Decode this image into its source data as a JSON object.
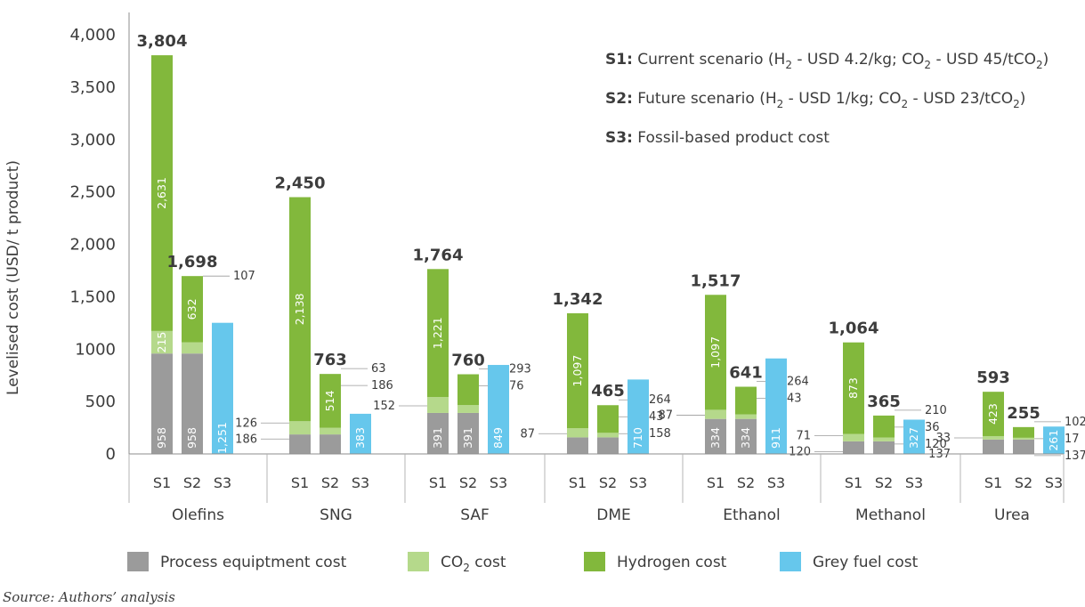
{
  "chart_data": {
    "type": "bar",
    "stacked": true,
    "ylabel": "Levelised cost (USD/ t product)",
    "ylim": [
      0,
      4000
    ],
    "yticks": [
      "0",
      "500",
      "1000",
      "1,500",
      "2,000",
      "2,500",
      "3,000",
      "3,500",
      "4,000"
    ],
    "grid": false,
    "categories": [
      "Olefins",
      "SNG",
      "SAF",
      "DME",
      "Ethanol",
      "Methanol",
      "Urea"
    ],
    "scenarios": [
      "S1",
      "S2",
      "S3"
    ],
    "series": [
      {
        "key": "process",
        "name": "Process equiptment cost",
        "color": "#9b9b9b"
      },
      {
        "key": "co2",
        "name": "CO₂ cost",
        "color": "#b5d98b"
      },
      {
        "key": "hydrogen",
        "name": "Hydrogen cost",
        "color": "#82b83c"
      },
      {
        "key": "grey",
        "name": "Grey fuel cost",
        "color": "#66c7ec"
      }
    ],
    "bars": [
      {
        "category": "Olefins",
        "scenario": "S1",
        "process": 958,
        "co2": 215,
        "hydrogen": 2631,
        "total": "3,804",
        "labels": {
          "process": "958",
          "co2": "215",
          "hydrogen": "2,631"
        }
      },
      {
        "category": "Olefins",
        "scenario": "S2",
        "process": 958,
        "co2": 107,
        "hydrogen": 632,
        "total": "1,698",
        "labels": {
          "process": "958",
          "hydrogen": "632"
        },
        "side_right": [
          "107"
        ]
      },
      {
        "category": "Olefins",
        "scenario": "S3",
        "grey": 1251,
        "labels": {
          "grey": "1,251"
        }
      },
      {
        "category": "SNG",
        "scenario": "S1",
        "process": 186,
        "co2": 126,
        "hydrogen": 2138,
        "total": "2,450",
        "labels": {
          "hydrogen": "2,138"
        },
        "side_left": [
          "126",
          "186"
        ]
      },
      {
        "category": "SNG",
        "scenario": "S2",
        "process": 186,
        "co2": 63,
        "hydrogen": 514,
        "total": "763",
        "labels": {
          "hydrogen": "514"
        },
        "side_right": [
          "63",
          "186"
        ]
      },
      {
        "category": "SNG",
        "scenario": "S3",
        "grey": 383,
        "labels": {
          "grey": "383"
        }
      },
      {
        "category": "SAF",
        "scenario": "S1",
        "process": 391,
        "co2": 152,
        "hydrogen": 1221,
        "total": "1,764",
        "labels": {
          "process": "391",
          "hydrogen": "1,221"
        },
        "side_left": [
          "152"
        ]
      },
      {
        "category": "SAF",
        "scenario": "S2",
        "process": 391,
        "co2": 76,
        "hydrogen": 293,
        "total": "760",
        "labels": {
          "process": "391"
        },
        "side_right": [
          "293",
          "76"
        ]
      },
      {
        "category": "SAF",
        "scenario": "S3",
        "grey": 849,
        "labels": {
          "grey": "849"
        }
      },
      {
        "category": "DME",
        "scenario": "S1",
        "process": 158,
        "co2": 87,
        "hydrogen": 1097,
        "total": "1,342",
        "labels": {
          "hydrogen": "1,097"
        },
        "side_left": [
          "87"
        ]
      },
      {
        "category": "DME",
        "scenario": "S2",
        "process": 158,
        "co2": 43,
        "hydrogen": 264,
        "total": "465",
        "side_right": [
          "264",
          "43",
          "158"
        ]
      },
      {
        "category": "DME",
        "scenario": "S3",
        "grey": 710,
        "labels": {
          "grey": "710"
        }
      },
      {
        "category": "Ethanol",
        "scenario": "S1",
        "process": 334,
        "co2": 87,
        "hydrogen": 1097,
        "total": "1,517",
        "labels": {
          "process": "334",
          "hydrogen": "1,097"
        },
        "side_left": [
          "87"
        ]
      },
      {
        "category": "Ethanol",
        "scenario": "S2",
        "process": 334,
        "co2": 43,
        "hydrogen": 264,
        "total": "641",
        "labels": {
          "process": "334"
        },
        "side_right": [
          "264",
          "43"
        ]
      },
      {
        "category": "Ethanol",
        "scenario": "S3",
        "grey": 911,
        "labels": {
          "grey": "911"
        }
      },
      {
        "category": "Methanol",
        "scenario": "S1",
        "process": 120,
        "co2": 71,
        "hydrogen": 873,
        "total": "1,064",
        "labels": {
          "hydrogen": "873"
        },
        "side_left": [
          "71",
          "120"
        ]
      },
      {
        "category": "Methanol",
        "scenario": "S2",
        "process": 120,
        "co2": 36,
        "hydrogen": 210,
        "total": "365",
        "side_right": [
          "210",
          "36",
          "120"
        ]
      },
      {
        "category": "Methanol",
        "scenario": "S3",
        "grey": 327,
        "labels": {
          "grey": "327"
        }
      },
      {
        "category": "Urea",
        "scenario": "S1",
        "process": 137,
        "co2": 33,
        "hydrogen": 423,
        "total": "593",
        "labels": {
          "hydrogen": "423"
        },
        "side_left": [
          "33",
          "137"
        ]
      },
      {
        "category": "Urea",
        "scenario": "S2",
        "process": 137,
        "co2": 17,
        "hydrogen": 102,
        "total": "255",
        "side_right": [
          "102",
          "17",
          "137"
        ]
      },
      {
        "category": "Urea",
        "scenario": "S3",
        "grey": 261,
        "labels": {
          "grey": "261"
        }
      }
    ],
    "scenario_notes": [
      {
        "key": "S1:",
        "parts": [
          " Current scenario (H",
          "2",
          " - USD 4.2/kg; CO",
          "2",
          " - USD 45/tCO",
          "2",
          ")"
        ]
      },
      {
        "key": "S2:",
        "parts": [
          " Future scenario (H",
          "2",
          " - USD 1/kg; CO",
          "2",
          " - USD 23/tCO",
          "2",
          ")"
        ]
      },
      {
        "key": "S3:",
        "parts": [
          " Fossil-based product cost"
        ]
      }
    ],
    "legend_position": "bottom",
    "source": "Source: Authors’ analysis"
  }
}
